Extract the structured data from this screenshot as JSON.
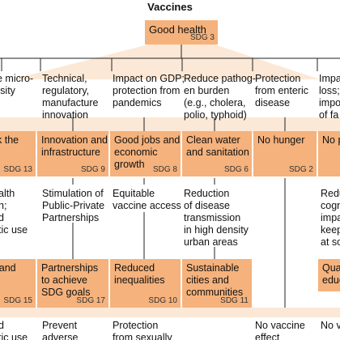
{
  "title": "Vaccines",
  "top_box": {
    "label": "Good health",
    "sdg": "SDG 3"
  },
  "columns": [
    {
      "impact": [
        "e micro-",
        "rsity"
      ],
      "goal": {
        "label": [
          "k the"
        ],
        "sdg": "SDG 13"
      },
      "effect": [
        "alth",
        "h;",
        "d",
        "tic use"
      ],
      "goal2": {
        "label": [
          "land"
        ],
        "sdg": "SDG 15"
      },
      "effect2": [
        "d",
        "tic use"
      ]
    },
    {
      "impact": [
        "Technical,",
        "regulatory,",
        "manufacture",
        "innovation"
      ],
      "goal": {
        "label": [
          "Innovation and",
          "infrastructure"
        ],
        "sdg": "SDG 9"
      },
      "effect": [
        "Stimulation of",
        "Public-Private",
        "Partnerships"
      ],
      "goal2": {
        "label": [
          "Partnerships",
          "to achieve",
          "SDG goals"
        ],
        "sdg": "SDG 17"
      },
      "effect2": [
        "Prevent",
        "adverse"
      ]
    },
    {
      "impact": [
        "Impact on GDP;",
        "protection from",
        "pandemics"
      ],
      "goal": {
        "label": [
          "Good jobs and",
          "economic",
          "growth"
        ],
        "sdg": "SDG 8"
      },
      "effect": [
        "Equitable",
        "vaccine access"
      ],
      "goal2": {
        "label": [
          "Reduced",
          "inequalities"
        ],
        "sdg": "SDG 10"
      },
      "effect2": [
        "Protection",
        "from sexually"
      ]
    },
    {
      "impact": [
        "Reduce pathog-",
        "en burden",
        "(e.g., cholera,",
        "polio, typhoid)"
      ],
      "goal": {
        "label": [
          "Clean water",
          "and sanitation"
        ],
        "sdg": "SDG 6"
      },
      "effect": [
        "Reduction",
        "of disease",
        "transmission",
        "in high density",
        "urban areas"
      ],
      "goal2": {
        "label": [
          "Sustainable",
          "cities and",
          "communities"
        ],
        "sdg": "SDG 11"
      }
    },
    {
      "impact": [
        "Protection",
        "from enteric",
        "disease"
      ],
      "goal": {
        "label": [
          "No hunger"
        ],
        "sdg": "SDG 2"
      },
      "effect2": [
        "No vaccine",
        "effect"
      ]
    },
    {
      "impact": [
        "Impa",
        "loss;",
        "impo",
        "of fa"
      ],
      "goal": {
        "label": [
          "No p"
        ]
      },
      "effect": [
        "Redu",
        "cogn",
        "impa",
        "keep",
        "at so"
      ],
      "goal2": {
        "label": [
          "Qual",
          "educ"
        ]
      },
      "effect2": [
        "No v"
      ]
    }
  ]
}
